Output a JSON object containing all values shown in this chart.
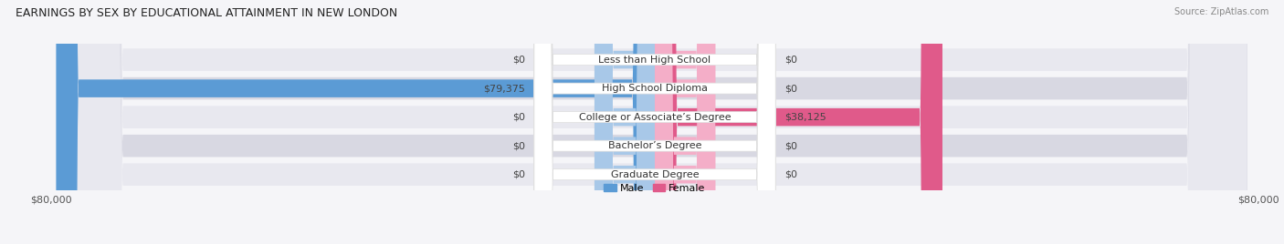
{
  "title": "EARNINGS BY SEX BY EDUCATIONAL ATTAINMENT IN NEW LONDON",
  "source": "Source: ZipAtlas.com",
  "categories": [
    "Less than High School",
    "High School Diploma",
    "College or Associate’s Degree",
    "Bachelor’s Degree",
    "Graduate Degree"
  ],
  "male_values": [
    0,
    79375,
    0,
    0,
    0
  ],
  "female_values": [
    0,
    0,
    38125,
    0,
    0
  ],
  "male_stub": 8000,
  "female_stub": 8000,
  "x_min": -80000,
  "x_max": 80000,
  "male_color_main": "#5b9bd5",
  "male_color_stub": "#a8c8e8",
  "female_color_main": "#e05a8a",
  "female_color_stub": "#f4aec8",
  "male_legend_color": "#5b9bd5",
  "female_legend_color": "#e05a8a",
  "bar_height": 0.62,
  "row_bg_color_light": "#e8e8ef",
  "row_bg_color_dark": "#d8d8e2",
  "title_fontsize": 9,
  "source_fontsize": 7,
  "label_fontsize": 8,
  "tick_fontsize": 8,
  "legend_fontsize": 8,
  "category_fontsize": 8,
  "bg_color": "#f5f5f8"
}
